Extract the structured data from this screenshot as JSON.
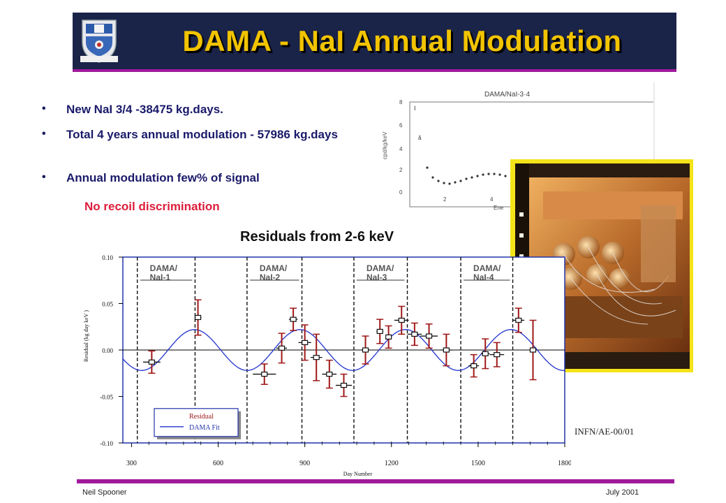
{
  "slide": {
    "title": "DAMA - NaI Annual Modulation",
    "bullets": [
      "New NaI 3/4 -38475 kg.days.",
      "Total 4 years annual modulation - 57986 kg.days",
      "Annual modulation few% of signal"
    ],
    "bullet_symbol": "•",
    "note": "No recoil discrimination",
    "chart_heading": "Residuals from 2-6 keV",
    "reference": "INFN/AE-00/01",
    "footer_left": "Neil Spooner",
    "footer_right": "July 2001",
    "colors": {
      "banner": "#1a2348",
      "title": "#f2c400",
      "accent_rule": "#a01a9b",
      "note": "#dd1d3a",
      "photo_frame": "#f5e31a"
    },
    "crest_icon": "university-crest-icon",
    "photo_icon": "detector-photo-icon"
  },
  "inset_plot": {
    "title": "DAMA/NaI-3·4",
    "ylabel": "cpd/kg/keV",
    "y_ticks": [
      "0",
      "2",
      "4",
      "6",
      "8"
    ],
    "x_ticks": [
      "2",
      "4"
    ],
    "xlabel_fragment": "Ene"
  },
  "chart_data": {
    "type": "scatter",
    "xlabel": "Day Number",
    "ylabel": "Residual (kg day keV )",
    "xlim": [
      270,
      1800
    ],
    "ylim": [
      -0.1,
      0.1
    ],
    "x_ticks": [
      "300",
      "600",
      "900",
      "1200",
      "1500",
      "1800"
    ],
    "y_ticks": [
      "0.10",
      "0.05",
      "0.00",
      "-0.05",
      "-0.10"
    ],
    "periods": [
      {
        "label": "DAMA/\nNaI-1",
        "start": 320,
        "end": 520
      },
      {
        "label": "DAMA/\nNaI-2",
        "start": 700,
        "end": 890
      },
      {
        "label": "DAMA/\nNaI-3",
        "start": 1070,
        "end": 1255
      },
      {
        "label": "DAMA/\nNaI-4",
        "start": 1440,
        "end": 1620
      }
    ],
    "legend": {
      "position": "bottom-left",
      "entries": [
        "Residual",
        "DAMA Fit"
      ]
    },
    "fit": {
      "name": "DAMA Fit",
      "amplitude": 0.022,
      "period_days": 365.25,
      "phase_day": 152.5
    },
    "series": [
      {
        "name": "Residual",
        "points": [
          {
            "x": 370,
            "y": -0.013,
            "xerr": 30,
            "yerr": 0.012
          },
          {
            "x": 530,
            "y": 0.035,
            "xerr": 12,
            "yerr": 0.019
          },
          {
            "x": 760,
            "y": -0.026,
            "xerr": 40,
            "yerr": 0.011
          },
          {
            "x": 820,
            "y": 0.002,
            "xerr": 18,
            "yerr": 0.016
          },
          {
            "x": 860,
            "y": 0.033,
            "xerr": 15,
            "yerr": 0.012
          },
          {
            "x": 900,
            "y": 0.008,
            "xerr": 22,
            "yerr": 0.019
          },
          {
            "x": 940,
            "y": -0.008,
            "xerr": 20,
            "yerr": 0.025
          },
          {
            "x": 985,
            "y": -0.026,
            "xerr": 25,
            "yerr": 0.015
          },
          {
            "x": 1035,
            "y": -0.038,
            "xerr": 28,
            "yerr": 0.012
          },
          {
            "x": 1110,
            "y": 0.0,
            "xerr": 15,
            "yerr": 0.015
          },
          {
            "x": 1160,
            "y": 0.02,
            "xerr": 12,
            "yerr": 0.013
          },
          {
            "x": 1190,
            "y": 0.014,
            "xerr": 10,
            "yerr": 0.012
          },
          {
            "x": 1235,
            "y": 0.032,
            "xerr": 25,
            "yerr": 0.015
          },
          {
            "x": 1280,
            "y": 0.017,
            "xerr": 25,
            "yerr": 0.012
          },
          {
            "x": 1330,
            "y": 0.015,
            "xerr": 30,
            "yerr": 0.013
          },
          {
            "x": 1390,
            "y": 0.0,
            "xerr": 20,
            "yerr": 0.017
          },
          {
            "x": 1485,
            "y": -0.017,
            "xerr": 18,
            "yerr": 0.012
          },
          {
            "x": 1525,
            "y": -0.004,
            "xerr": 15,
            "yerr": 0.016
          },
          {
            "x": 1565,
            "y": -0.005,
            "xerr": 25,
            "yerr": 0.013
          },
          {
            "x": 1640,
            "y": 0.032,
            "xerr": 20,
            "yerr": 0.013
          },
          {
            "x": 1690,
            "y": 0.0,
            "xerr": 12,
            "yerr": 0.032
          }
        ]
      }
    ]
  }
}
